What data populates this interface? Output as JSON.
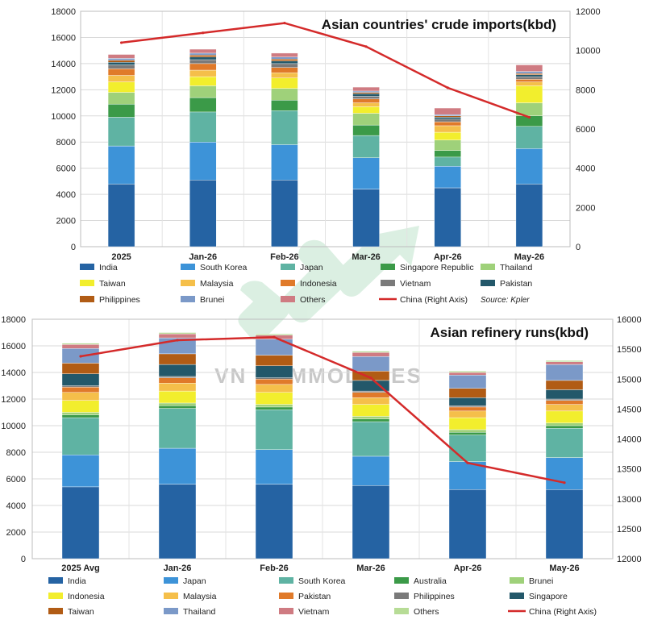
{
  "watermark": "VN COMMODITIES",
  "chart_data": [
    {
      "type": "bar",
      "stacked": true,
      "title": "Asian countries' crude imports(kbd)",
      "source": "Source: Kpler",
      "categories": [
        "2025",
        "Jan-26",
        "Feb-26",
        "Mar-26",
        "Apr-26",
        "May-26"
      ],
      "ylim": [
        0,
        18000
      ],
      "yticks": [
        0,
        2000,
        4000,
        6000,
        8000,
        10000,
        12000,
        14000,
        16000,
        18000
      ],
      "y2lim": [
        0,
        12000
      ],
      "y2ticks": [
        0,
        2000,
        4000,
        6000,
        8000,
        10000,
        12000
      ],
      "grid": true,
      "legend_position": "bottom",
      "series": [
        {
          "name": "India",
          "color": "#2563a3",
          "values": [
            4800,
            5100,
            5100,
            4400,
            4500,
            4800
          ]
        },
        {
          "name": "South Korea",
          "color": "#3d93d8",
          "values": [
            2900,
            2900,
            2700,
            2400,
            1650,
            2700
          ]
        },
        {
          "name": "Japan",
          "color": "#5fb3a3",
          "values": [
            2200,
            2300,
            2600,
            1700,
            700,
            1700
          ]
        },
        {
          "name": "Singapore Republic",
          "color": "#3b9a48",
          "values": [
            1000,
            1100,
            800,
            800,
            500,
            800
          ]
        },
        {
          "name": "Thailand",
          "color": "#9fd17a",
          "values": [
            900,
            900,
            900,
            900,
            800,
            1000
          ]
        },
        {
          "name": "Taiwan",
          "color": "#f2ee2d",
          "values": [
            800,
            700,
            800,
            500,
            600,
            1300
          ]
        },
        {
          "name": "Malaysia",
          "color": "#f5bf4a",
          "values": [
            500,
            500,
            400,
            300,
            500,
            300
          ]
        },
        {
          "name": "Indonesia",
          "color": "#e07a2a",
          "values": [
            500,
            500,
            400,
            300,
            300,
            200
          ]
        },
        {
          "name": "Vietnam",
          "color": "#7a7a7a",
          "values": [
            300,
            300,
            300,
            200,
            200,
            200
          ]
        },
        {
          "name": "Pakistan",
          "color": "#23586a",
          "values": [
            200,
            200,
            200,
            200,
            150,
            150
          ]
        },
        {
          "name": "Philippines",
          "color": "#b15c15",
          "values": [
            150,
            150,
            150,
            100,
            100,
            100
          ]
        },
        {
          "name": "Brunei",
          "color": "#7b99c8",
          "values": [
            150,
            150,
            150,
            100,
            100,
            150
          ]
        },
        {
          "name": "Others",
          "color": "#cf7b82",
          "values": [
            300,
            300,
            300,
            300,
            500,
            500
          ]
        }
      ],
      "line_series": {
        "name": "China (Right Axis)",
        "color": "#d42a2a",
        "axis": "right",
        "values": [
          10400,
          10900,
          11400,
          10200,
          8100,
          6600
        ]
      }
    },
    {
      "type": "bar",
      "stacked": true,
      "title": "Asian refinery runs(kbd)",
      "categories": [
        "2025 Avg",
        "Jan-26",
        "Feb-26",
        "Mar-26",
        "Apr-26",
        "May-26"
      ],
      "ylim": [
        0,
        18000
      ],
      "yticks": [
        0,
        2000,
        4000,
        6000,
        8000,
        10000,
        12000,
        14000,
        16000,
        18000
      ],
      "y2lim": [
        12000,
        16000
      ],
      "y2ticks": [
        12000,
        12500,
        13000,
        13500,
        14000,
        14500,
        15000,
        15500,
        16000
      ],
      "grid": true,
      "legend_position": "bottom",
      "series": [
        {
          "name": "India",
          "color": "#2563a3",
          "values": [
            5400,
            5600,
            5600,
            5500,
            5200,
            5200
          ]
        },
        {
          "name": "Japan",
          "color": "#3d93d8",
          "values": [
            2400,
            2700,
            2600,
            2200,
            2100,
            2400
          ]
        },
        {
          "name": "South Korea",
          "color": "#5fb3a3",
          "values": [
            2800,
            3000,
            3000,
            2600,
            2000,
            2200
          ]
        },
        {
          "name": "Australia",
          "color": "#3b9a48",
          "values": [
            200,
            200,
            200,
            200,
            200,
            200
          ]
        },
        {
          "name": "Brunei",
          "color": "#9fd17a",
          "values": [
            200,
            200,
            200,
            200,
            200,
            200
          ]
        },
        {
          "name": "Indonesia",
          "color": "#f2ee2d",
          "values": [
            900,
            900,
            900,
            900,
            900,
            900
          ]
        },
        {
          "name": "Malaysia",
          "color": "#f5bf4a",
          "values": [
            600,
            600,
            600,
            500,
            500,
            500
          ]
        },
        {
          "name": "Pakistan",
          "color": "#e07a2a",
          "values": [
            400,
            400,
            400,
            400,
            300,
            300
          ]
        },
        {
          "name": "Philippines",
          "color": "#7a7a7a",
          "values": [
            100,
            100,
            100,
            100,
            100,
            100
          ]
        },
        {
          "name": "Singapore",
          "color": "#23586a",
          "values": [
            900,
            900,
            900,
            800,
            600,
            700
          ]
        },
        {
          "name": "Taiwan",
          "color": "#b15c15",
          "values": [
            800,
            800,
            800,
            700,
            700,
            700
          ]
        },
        {
          "name": "Thailand",
          "color": "#7b99c8",
          "values": [
            1100,
            1200,
            1200,
            1100,
            1000,
            1200
          ]
        },
        {
          "name": "Vietnam",
          "color": "#cf7b82",
          "values": [
            300,
            300,
            300,
            300,
            200,
            200
          ]
        },
        {
          "name": "Others",
          "color": "#b7dc96",
          "values": [
            100,
            100,
            100,
            100,
            100,
            100
          ]
        }
      ],
      "line_series": {
        "name": "China (Right Axis)",
        "color": "#d42a2a",
        "axis": "right",
        "values": [
          15380,
          15650,
          15700,
          15020,
          13600,
          13270
        ]
      }
    }
  ]
}
